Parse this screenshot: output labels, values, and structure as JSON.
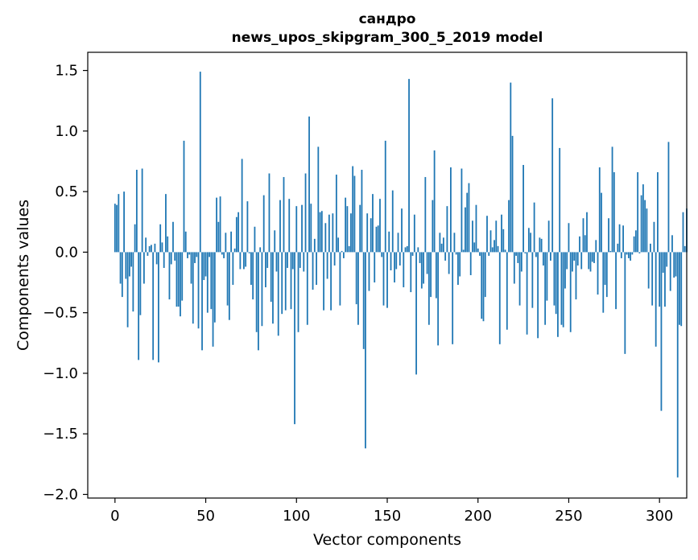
{
  "chart_data": {
    "type": "bar",
    "title_lines": [
      "сандро",
      "news_upos_skipgram_300_5_2019 model"
    ],
    "xlabel": "Vector components",
    "ylabel": "Components values",
    "xlim": [
      -15,
      315
    ],
    "ylim": [
      -2.03,
      1.65
    ],
    "xticks": [
      0,
      50,
      100,
      150,
      200,
      250,
      300
    ],
    "xtick_labels": [
      "0",
      "50",
      "100",
      "150",
      "200",
      "250",
      "300"
    ],
    "yticks": [
      1.5,
      1.0,
      0.5,
      0.0,
      -0.5,
      -1.0,
      -1.5,
      -2.0
    ],
    "ytick_labels": [
      "1.5",
      "1.0",
      "0.5",
      "0.0",
      "−0.5",
      "−1.0",
      "−1.5",
      "−2.0"
    ],
    "bar_color": "#1f77b4",
    "grid": false,
    "values": [
      0.4,
      0.39,
      0.48,
      -0.26,
      -0.37,
      0.5,
      -0.22,
      -0.62,
      -0.2,
      -0.12,
      -0.49,
      0.23,
      0.68,
      -0.89,
      -0.52,
      0.69,
      -0.26,
      0.12,
      -0.03,
      0.05,
      0.06,
      -0.89,
      0.07,
      -0.1,
      -0.91,
      0.23,
      0.08,
      -0.13,
      0.48,
      0.13,
      -0.39,
      -0.1,
      0.25,
      -0.07,
      -0.45,
      -0.45,
      -0.53,
      -0.4,
      0.92,
      0.17,
      -0.05,
      -0.02,
      -0.26,
      -0.59,
      -0.09,
      -0.04,
      -0.63,
      1.49,
      -0.81,
      -0.23,
      -0.2,
      -0.5,
      -0.04,
      -0.47,
      -0.78,
      -0.58,
      0.45,
      0.25,
      0.46,
      -0.02,
      -0.05,
      0.16,
      -0.44,
      -0.56,
      0.17,
      -0.27,
      0.03,
      0.29,
      0.33,
      -0.14,
      0.77,
      -0.14,
      -0.12,
      0.42,
      -0.01,
      -0.27,
      -0.39,
      0.21,
      -0.66,
      -0.81,
      0.04,
      -0.61,
      0.47,
      -0.29,
      -0.13,
      0.65,
      -0.41,
      -0.59,
      0.18,
      -0.16,
      -0.69,
      0.43,
      -0.51,
      0.62,
      -0.48,
      -0.13,
      0.44,
      -0.47,
      -0.14,
      -1.42,
      0.38,
      -0.66,
      -0.13,
      0.39,
      -0.16,
      0.65,
      -0.6,
      1.12,
      0.4,
      -0.31,
      0.11,
      -0.27,
      0.87,
      0.33,
      0.34,
      -0.48,
      0.24,
      -0.22,
      0.31,
      -0.48,
      0.32,
      -0.11,
      0.64,
      0.12,
      -0.44,
      0.01,
      -0.05,
      0.45,
      0.38,
      0.05,
      0.32,
      0.71,
      0.63,
      -0.43,
      -0.6,
      0.39,
      0.68,
      -0.8,
      -1.62,
      0.32,
      -0.32,
      0.28,
      0.48,
      -0.25,
      0.21,
      0.22,
      0.44,
      -0.04,
      -0.44,
      0.92,
      -0.46,
      0.17,
      -0.15,
      0.51,
      -0.25,
      -0.14,
      0.16,
      -0.11,
      0.36,
      -0.29,
      0.04,
      0.05,
      1.43,
      -0.33,
      -0.03,
      0.31,
      -1.01,
      0.04,
      -0.09,
      -0.3,
      -0.26,
      0.62,
      -0.18,
      -0.6,
      -0.37,
      0.43,
      0.84,
      -0.38,
      -0.77,
      0.16,
      0.07,
      0.12,
      -0.07,
      0.38,
      -0.18,
      0.7,
      -0.76,
      0.16,
      -0.02,
      -0.27,
      -0.2,
      0.69,
      0.02,
      0.37,
      0.49,
      0.57,
      -0.19,
      0.26,
      0.08,
      0.39,
      0.03,
      -0.03,
      -0.55,
      -0.57,
      -0.37,
      0.3,
      -0.03,
      0.18,
      0.04,
      0.1,
      0.26,
      0.05,
      -0.76,
      0.31,
      0.19,
      0.02,
      -0.64,
      0.43,
      1.4,
      0.96,
      -0.26,
      -0.03,
      -0.09,
      -0.44,
      -0.16,
      0.72,
      -0.01,
      -0.68,
      0.2,
      0.16,
      -0.46,
      0.41,
      -0.04,
      -0.71,
      0.12,
      0.11,
      -0.11,
      -0.6,
      -0.4,
      0.26,
      -0.07,
      1.27,
      -0.44,
      -0.51,
      -0.7,
      0.86,
      -0.6,
      -0.62,
      -0.3,
      -0.14,
      0.24,
      -0.66,
      -0.16,
      -0.07,
      -0.39,
      -0.11,
      0.13,
      -0.14,
      0.28,
      0.14,
      0.33,
      -0.14,
      -0.16,
      -0.08,
      -0.09,
      0.1,
      -0.35,
      0.7,
      0.49,
      -0.5,
      -0.27,
      -0.37,
      0.28,
      0.01,
      0.87,
      0.66,
      -0.47,
      0.07,
      0.23,
      -0.05,
      0.22,
      -0.84,
      -0.02,
      -0.05,
      -0.07,
      -0.02,
      0.13,
      0.18,
      0.66,
      -0.01,
      0.47,
      0.56,
      0.43,
      0.36,
      -0.3,
      0.07,
      -0.44,
      0.25,
      -0.78,
      0.66,
      -0.45,
      -1.31,
      -0.17,
      -0.45,
      -0.12,
      0.91,
      -0.32,
      0.14,
      -0.21,
      -0.2,
      -1.86,
      -0.6,
      -0.61,
      0.33,
      0.05,
      0.36
    ]
  }
}
